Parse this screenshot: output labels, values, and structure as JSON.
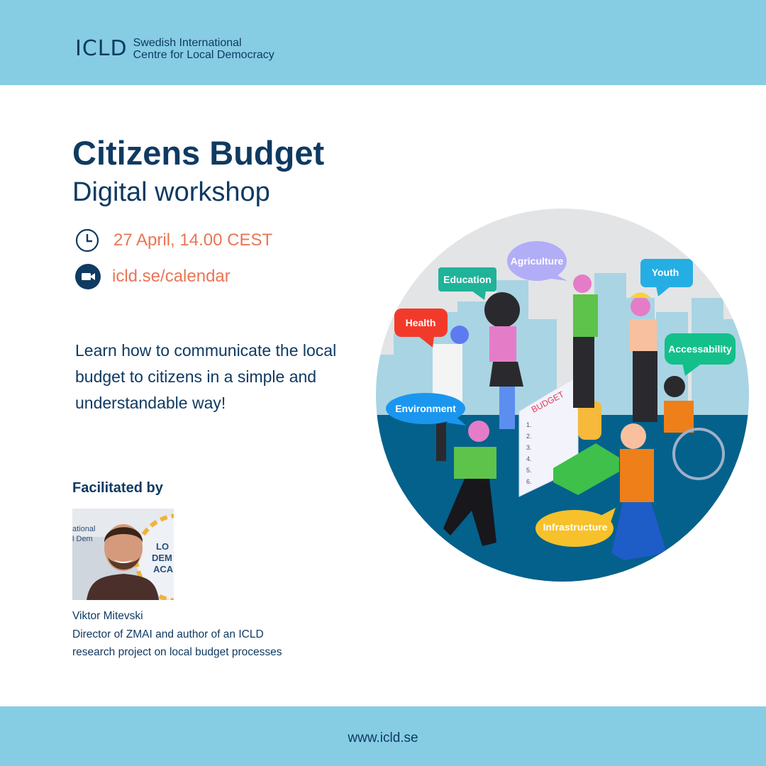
{
  "header": {
    "logo_mark": "ICLD",
    "logo_line1": "Swedish International",
    "logo_line2": "Centre for Local Democracy",
    "background": "#86cde4"
  },
  "event": {
    "title": "Citizens Budget",
    "subtitle": "Digital workshop",
    "date": "27 April, 14.00 CEST",
    "date_icon": "clock-icon",
    "link": "icld.se/calendar",
    "link_icon": "video-camera-icon",
    "accent_color": "#ea7555",
    "description": "Learn how to communicate the local budget to citizens in a simple and understandable way!"
  },
  "facilitator": {
    "heading": "Facilitated by",
    "name": "Viktor Mitevski",
    "role_line1": "Director of ZMAI and author of an ICLD",
    "role_line2": "research project on local budget processes",
    "photo_text": [
      "ational",
      "l Dem",
      "LO",
      "DEM",
      "ACA"
    ]
  },
  "illustration": {
    "sheet_title": "BUDGET",
    "sheet_numbers": [
      "1.",
      "2.",
      "3.",
      "4.",
      "5.",
      "6."
    ],
    "bubbles": [
      {
        "label": "Agriculture",
        "color": "#b2adf7"
      },
      {
        "label": "Education",
        "color": "#1fb39a"
      },
      {
        "label": "Youth",
        "color": "#25aee3"
      },
      {
        "label": "Health",
        "color": "#f23a2a"
      },
      {
        "label": "Accessability",
        "color": "#13c08a"
      },
      {
        "label": "Environment",
        "color": "#1b96ef"
      },
      {
        "label": "Infrastructure",
        "color": "#f6c12a"
      }
    ]
  },
  "footer": {
    "url": "www.icld.se"
  }
}
